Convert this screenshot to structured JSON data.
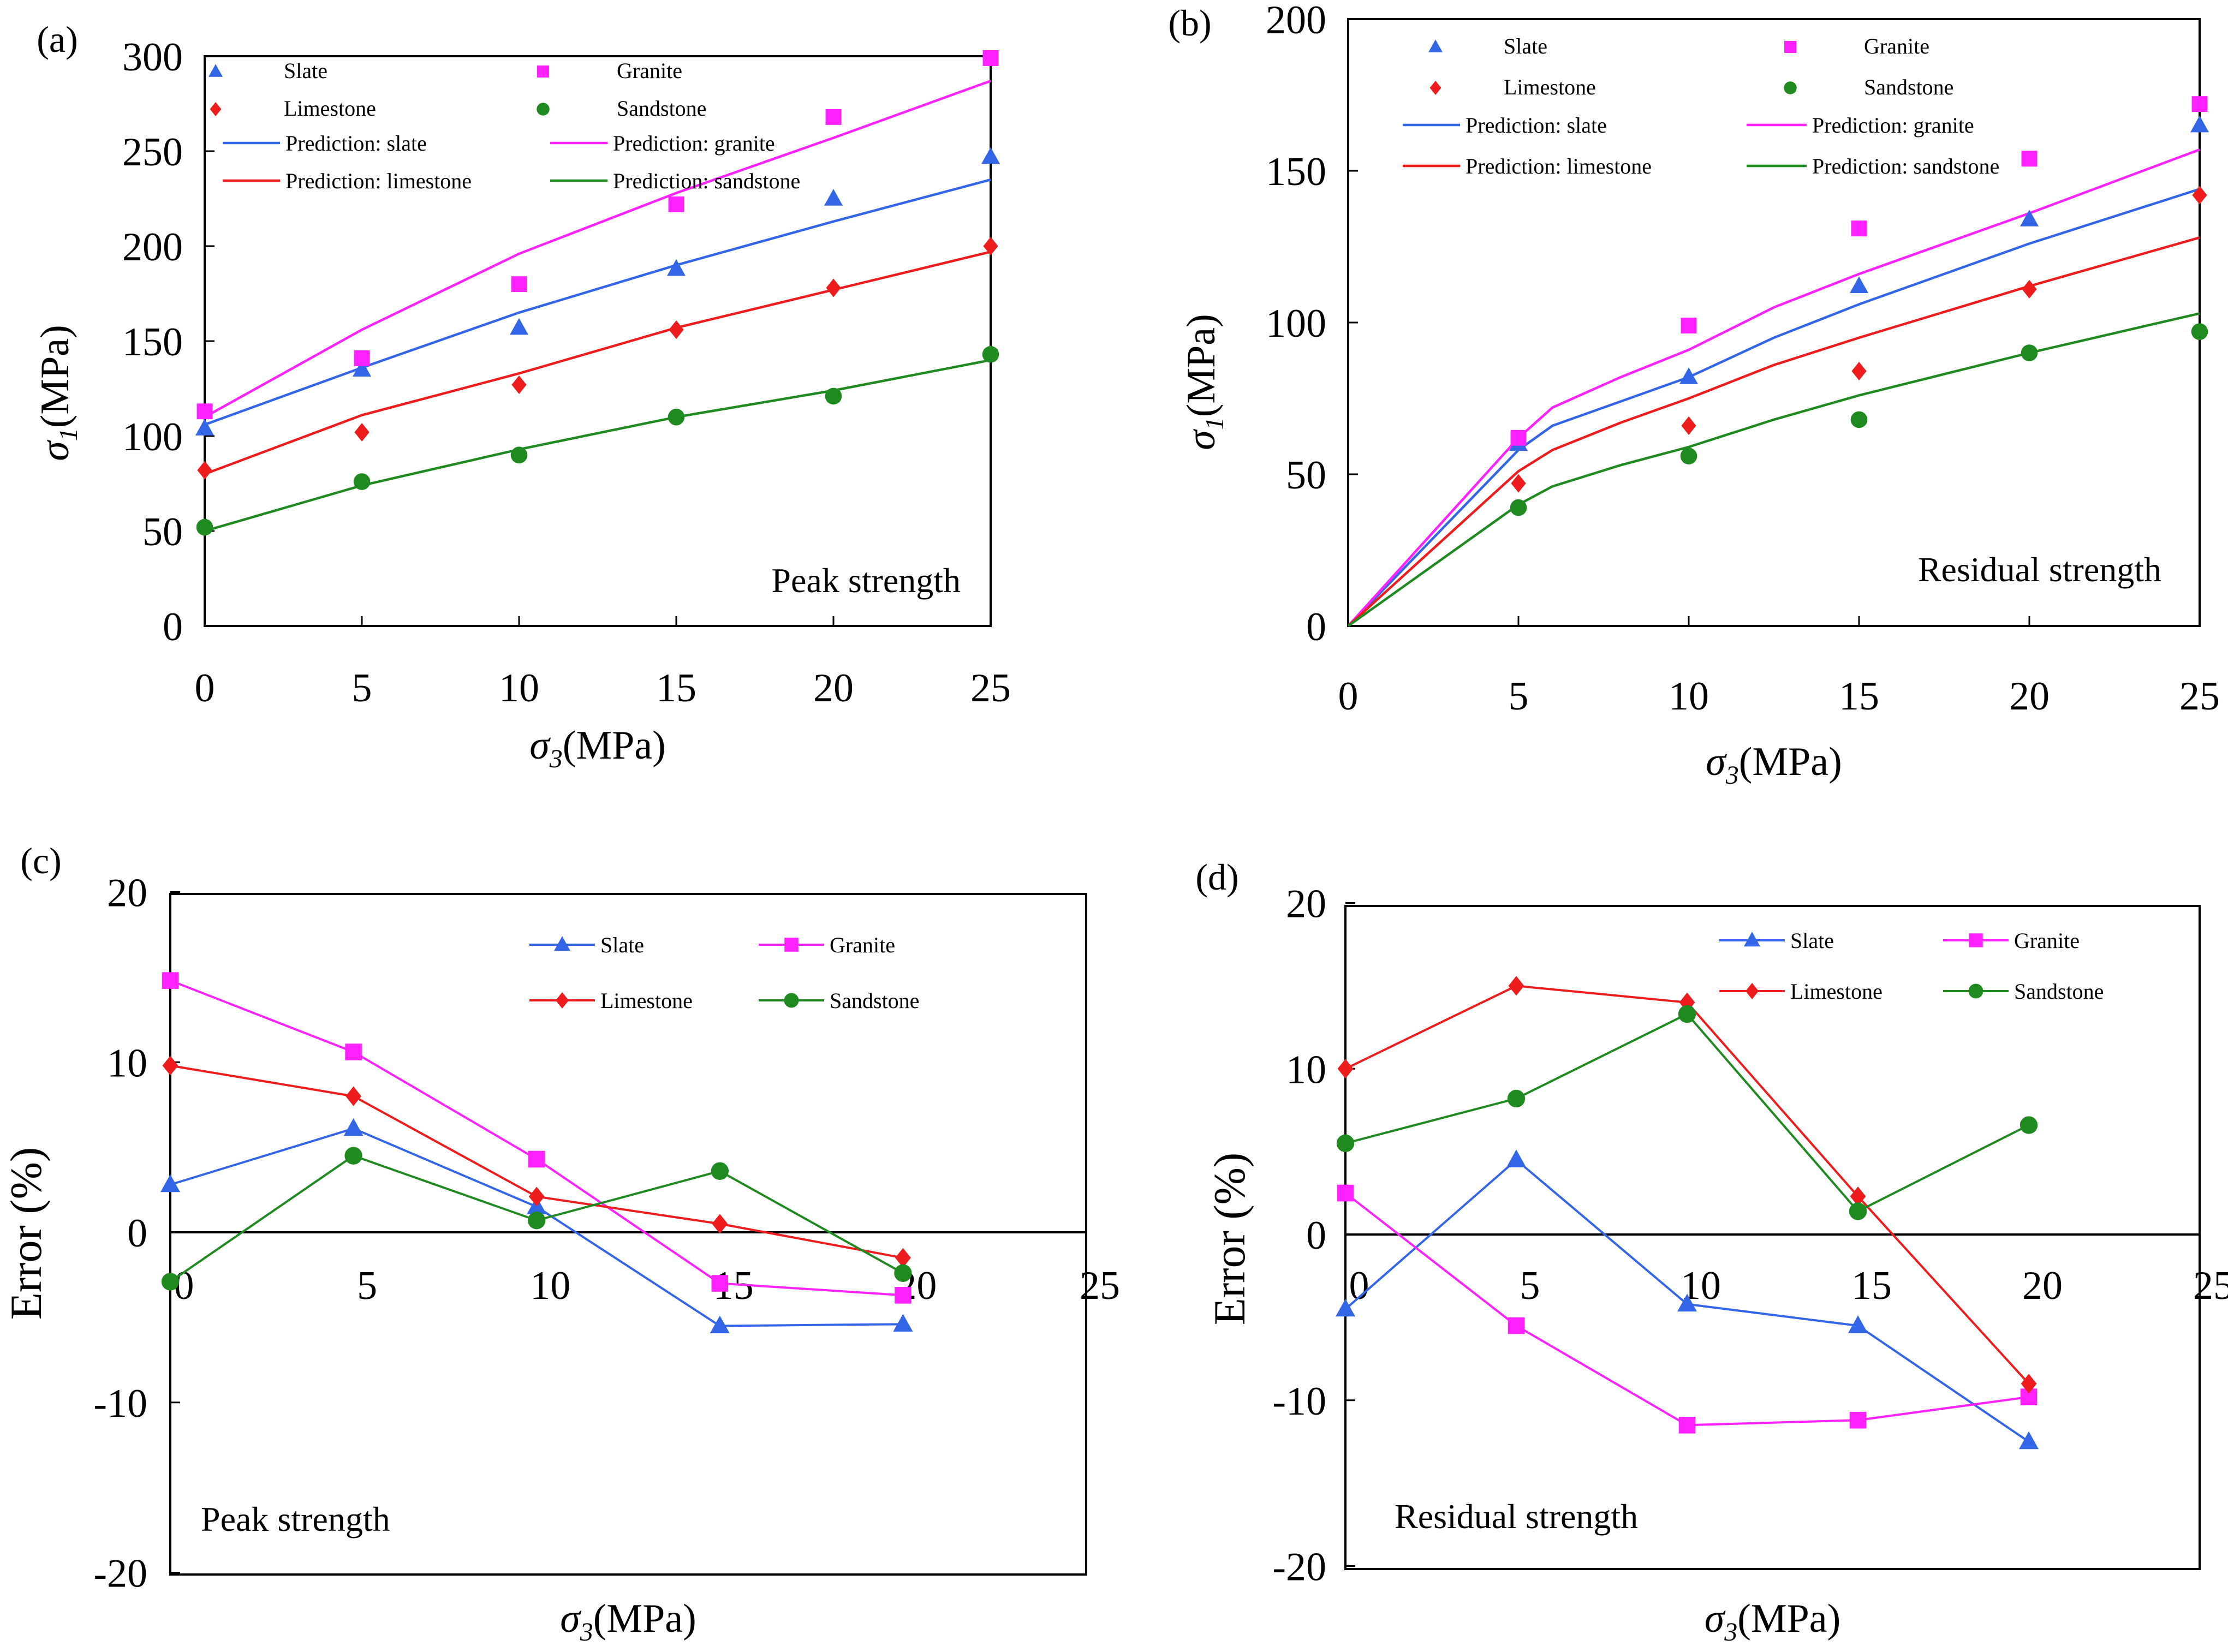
{
  "colors": {
    "slate": "#3366e6",
    "limestone": "#ee1c1c",
    "granite": "#ff22ff",
    "sandstone": "#1f8a1f",
    "axis": "#000000"
  },
  "chart_data": [
    {
      "panel": "(a)",
      "type": "scatter+line",
      "annotation": "Peak strength",
      "xlabel_sym": "σ",
      "xlabel_sub": "3",
      "xlabel_unit": "(MPa)",
      "ylabel_sym": "σ",
      "ylabel_sub": "1",
      "ylabel_unit": "(MPa)",
      "xlim": [
        0,
        25
      ],
      "ylim": [
        0,
        300
      ],
      "xticks": [
        "0",
        "5",
        "10",
        "15",
        "20",
        "25"
      ],
      "yticks": [
        "0",
        "50",
        "100",
        "150",
        "200",
        "250",
        "300"
      ],
      "x": [
        0,
        5,
        10,
        15,
        20,
        25
      ],
      "series": [
        {
          "name": "Slate",
          "key": "slate",
          "marker": "triangle",
          "values": [
            104,
            135,
            157,
            188,
            225,
            247
          ]
        },
        {
          "name": "Granite",
          "key": "granite",
          "marker": "square",
          "values": [
            113,
            141,
            180,
            222,
            268,
            299
          ]
        },
        {
          "name": "Limestone",
          "key": "limestone",
          "marker": "diamond",
          "values": [
            82,
            102,
            127,
            156,
            178,
            200
          ]
        },
        {
          "name": "Sandstone",
          "key": "sandstone",
          "marker": "circle",
          "values": [
            52,
            76,
            90,
            110,
            121,
            143
          ]
        }
      ],
      "predictions": [
        {
          "name": "Prediction:  slate",
          "key": "slate",
          "values": [
            106,
            136,
            165,
            190,
            213,
            235
          ]
        },
        {
          "name": "Prediction:  granite",
          "key": "granite",
          "values": [
            110,
            156,
            196,
            228,
            257,
            287
          ]
        },
        {
          "name": "Prediction:  limestone",
          "key": "limestone",
          "values": [
            80,
            111,
            133,
            157,
            177,
            197
          ]
        },
        {
          "name": "Prediction:  sandstone",
          "key": "sandstone",
          "values": [
            50,
            74,
            93,
            110,
            124,
            140
          ]
        }
      ]
    },
    {
      "panel": "(b)",
      "type": "scatter+line",
      "annotation": "Residual strength",
      "xlabel_sym": "σ",
      "xlabel_sub": "3",
      "xlabel_unit": "(MPa)",
      "ylabel_sym": "σ",
      "ylabel_sub": "1",
      "ylabel_unit": "(MPa)",
      "xlim": [
        0,
        25
      ],
      "ylim": [
        0,
        200
      ],
      "xticks": [
        "0",
        "5",
        "10",
        "15",
        "20",
        "25"
      ],
      "yticks": [
        "0",
        "50",
        "100",
        "150",
        "200"
      ],
      "x": [
        5,
        10,
        15,
        20,
        25
      ],
      "series": [
        {
          "name": "Slate",
          "key": "slate",
          "marker": "triangle",
          "values": [
            60,
            82,
            112,
            134,
            165
          ]
        },
        {
          "name": "Granite",
          "key": "granite",
          "marker": "square",
          "values": [
            62,
            99,
            131,
            154,
            172
          ]
        },
        {
          "name": "Limestone",
          "key": "limestone",
          "marker": "diamond",
          "values": [
            47,
            66,
            84,
            111,
            142
          ]
        },
        {
          "name": "Sandstone",
          "key": "sandstone",
          "marker": "circle",
          "values": [
            39,
            56,
            68,
            90,
            97
          ]
        }
      ],
      "prediction_x": [
        0,
        5,
        6,
        8,
        10,
        12.5,
        15,
        20,
        25
      ],
      "predictions": [
        {
          "name": "Prediction:  slate",
          "key": "slate",
          "values": [
            0,
            58,
            66,
            74,
            82,
            95,
            106,
            126,
            144
          ]
        },
        {
          "name": "Prediction:  granite",
          "key": "granite",
          "values": [
            0,
            62,
            72,
            82,
            91,
            105,
            116,
            136,
            157
          ]
        },
        {
          "name": "Prediction:  limestone",
          "key": "limestone",
          "values": [
            0,
            51,
            58,
            67,
            75,
            86,
            95,
            112,
            128
          ]
        },
        {
          "name": "Prediction:  sandstone",
          "key": "sandstone",
          "values": [
            0,
            40,
            46,
            53,
            59,
            68,
            76,
            90,
            103
          ]
        }
      ]
    },
    {
      "panel": "(c)",
      "type": "line",
      "annotation": "Peak strength",
      "xlabel_sym": "σ",
      "xlabel_sub": "3",
      "xlabel_unit": "(MPa)",
      "ylabel": "Error (%)",
      "xlim": [
        0,
        25
      ],
      "ylim": [
        -20,
        20
      ],
      "xticks": [
        "0",
        "5",
        "10",
        "15",
        "20",
        "25"
      ],
      "yticks": [
        "-20",
        "-10",
        "0",
        "10",
        "20"
      ],
      "x": [
        0,
        5,
        10,
        15,
        20
      ],
      "series": [
        {
          "name": "Slate",
          "key": "slate",
          "marker": "triangle",
          "values": [
            2.8,
            6.1,
            1.5,
            -5.5,
            -5.4
          ]
        },
        {
          "name": "Granite",
          "key": "granite",
          "marker": "square",
          "values": [
            14.8,
            10.6,
            4.3,
            -3.0,
            -3.7
          ]
        },
        {
          "name": "Limestone",
          "key": "limestone",
          "marker": "diamond",
          "values": [
            9.8,
            8.0,
            2.1,
            0.5,
            -1.5
          ]
        },
        {
          "name": "Sandstone",
          "key": "sandstone",
          "marker": "circle",
          "values": [
            -2.9,
            4.5,
            0.7,
            3.6,
            -2.4
          ]
        }
      ]
    },
    {
      "panel": "(d)",
      "type": "line",
      "annotation": "Residual strength",
      "xlabel_sym": "σ",
      "xlabel_sub": "3",
      "xlabel_unit": "(MPa)",
      "ylabel": "Error (%)",
      "xlim": [
        0,
        25
      ],
      "ylim": [
        -20,
        20
      ],
      "xticks": [
        "0",
        "5",
        "10",
        "15",
        "20",
        "25"
      ],
      "yticks": [
        "-20",
        "-10",
        "0",
        "10",
        "20"
      ],
      "x": [
        0,
        5,
        10,
        15,
        20
      ],
      "series": [
        {
          "name": "Slate",
          "key": "slate",
          "marker": "triangle",
          "values": [
            -4.5,
            4.5,
            -4.2,
            -5.5,
            -12.5
          ]
        },
        {
          "name": "Granite",
          "key": "granite",
          "marker": "square",
          "values": [
            2.5,
            -5.5,
            -11.5,
            -11.2,
            -9.8
          ]
        },
        {
          "name": "Limestone",
          "key": "limestone",
          "marker": "diamond",
          "values": [
            10.0,
            15.0,
            14.0,
            2.3,
            -9.0
          ]
        },
        {
          "name": "Sandstone",
          "key": "sandstone",
          "marker": "circle",
          "values": [
            5.5,
            8.2,
            13.3,
            1.4,
            6.6
          ]
        }
      ]
    }
  ]
}
